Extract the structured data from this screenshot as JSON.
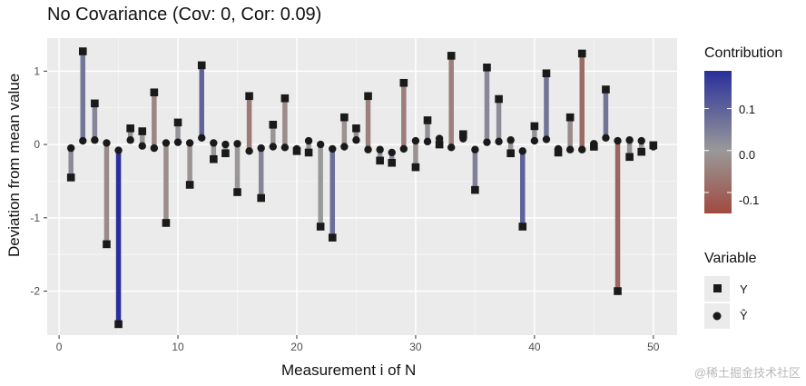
{
  "chart_data": {
    "type": "scatter",
    "title": "No Covariance (Cov: 0, Cor: 0.09)",
    "xlabel": "Measurement i of N",
    "ylabel": "Deviation from mean value",
    "xlim": [
      -1,
      52
    ],
    "ylim": [
      -2.6,
      1.45
    ],
    "x_ticks": [
      0,
      10,
      20,
      30,
      40,
      50
    ],
    "y_ticks": [
      -2,
      -1,
      0,
      1
    ],
    "grid": true,
    "legend_position": "right",
    "color_legend": {
      "title": "Contribution",
      "low_color": "#a04a40",
      "mid_color": "#999999",
      "high_color": "#2a2f9a",
      "range": [
        -0.15,
        0.19
      ],
      "ticks": [
        "0.1",
        "0.0",
        "-0.1"
      ],
      "tick_values": [
        0.1,
        0.0,
        -0.1
      ]
    },
    "shape_legend": {
      "title": "Variable",
      "entries": [
        "Y",
        "Ŷ"
      ]
    },
    "points": [
      {
        "i": 1,
        "y": -0.45,
        "yhat": -0.05
      },
      {
        "i": 2,
        "y": 1.27,
        "yhat": 0.05
      },
      {
        "i": 3,
        "y": 0.56,
        "yhat": 0.06
      },
      {
        "i": 4,
        "y": -1.36,
        "yhat": 0.02
      },
      {
        "i": 5,
        "y": -2.45,
        "yhat": -0.08
      },
      {
        "i": 6,
        "y": 0.22,
        "yhat": 0.06
      },
      {
        "i": 7,
        "y": 0.18,
        "yhat": -0.02
      },
      {
        "i": 8,
        "y": 0.71,
        "yhat": -0.05
      },
      {
        "i": 9,
        "y": -1.07,
        "yhat": 0.02
      },
      {
        "i": 10,
        "y": 0.3,
        "yhat": 0.03
      },
      {
        "i": 11,
        "y": -0.55,
        "yhat": 0.02
      },
      {
        "i": 12,
        "y": 1.08,
        "yhat": 0.09
      },
      {
        "i": 13,
        "y": -0.2,
        "yhat": 0.02
      },
      {
        "i": 14,
        "y": -0.12,
        "yhat": 0.0
      },
      {
        "i": 15,
        "y": -0.65,
        "yhat": 0.01
      },
      {
        "i": 16,
        "y": 0.66,
        "yhat": -0.09
      },
      {
        "i": 17,
        "y": -0.73,
        "yhat": -0.05
      },
      {
        "i": 18,
        "y": 0.27,
        "yhat": -0.03
      },
      {
        "i": 19,
        "y": 0.63,
        "yhat": -0.04
      },
      {
        "i": 20,
        "y": -0.09,
        "yhat": -0.06
      },
      {
        "i": 21,
        "y": -0.11,
        "yhat": 0.05
      },
      {
        "i": 22,
        "y": -1.12,
        "yhat": 0.0
      },
      {
        "i": 23,
        "y": -1.27,
        "yhat": -0.06
      },
      {
        "i": 24,
        "y": 0.37,
        "yhat": -0.03
      },
      {
        "i": 25,
        "y": 0.22,
        "yhat": 0.06
      },
      {
        "i": 26,
        "y": 0.66,
        "yhat": -0.07
      },
      {
        "i": 27,
        "y": -0.22,
        "yhat": -0.07
      },
      {
        "i": 28,
        "y": -0.25,
        "yhat": -0.11
      },
      {
        "i": 29,
        "y": 0.84,
        "yhat": -0.06
      },
      {
        "i": 30,
        "y": -0.31,
        "yhat": 0.05
      },
      {
        "i": 31,
        "y": 0.33,
        "yhat": 0.04
      },
      {
        "i": 32,
        "y": 0.0,
        "yhat": 0.08
      },
      {
        "i": 33,
        "y": 1.21,
        "yhat": -0.04
      },
      {
        "i": 34,
        "y": 0.14,
        "yhat": 0.08
      },
      {
        "i": 35,
        "y": -0.62,
        "yhat": -0.07
      },
      {
        "i": 36,
        "y": 1.05,
        "yhat": 0.03
      },
      {
        "i": 37,
        "y": 0.62,
        "yhat": 0.04
      },
      {
        "i": 38,
        "y": -0.12,
        "yhat": 0.06
      },
      {
        "i": 39,
        "y": -1.12,
        "yhat": -0.09
      },
      {
        "i": 40,
        "y": 0.25,
        "yhat": 0.05
      },
      {
        "i": 41,
        "y": 0.97,
        "yhat": 0.07
      },
      {
        "i": 42,
        "y": -0.11,
        "yhat": -0.06
      },
      {
        "i": 43,
        "y": 0.37,
        "yhat": -0.07
      },
      {
        "i": 44,
        "y": 1.24,
        "yhat": -0.07
      },
      {
        "i": 45,
        "y": -0.03,
        "yhat": 0.01
      },
      {
        "i": 46,
        "y": 0.75,
        "yhat": 0.09
      },
      {
        "i": 47,
        "y": -2.0,
        "yhat": 0.05
      },
      {
        "i": 48,
        "y": -0.17,
        "yhat": 0.06
      },
      {
        "i": 49,
        "y": -0.1,
        "yhat": 0.05
      },
      {
        "i": 50,
        "y": -0.01,
        "yhat": -0.03
      }
    ]
  },
  "watermark": "@稀土掘金技术社区"
}
